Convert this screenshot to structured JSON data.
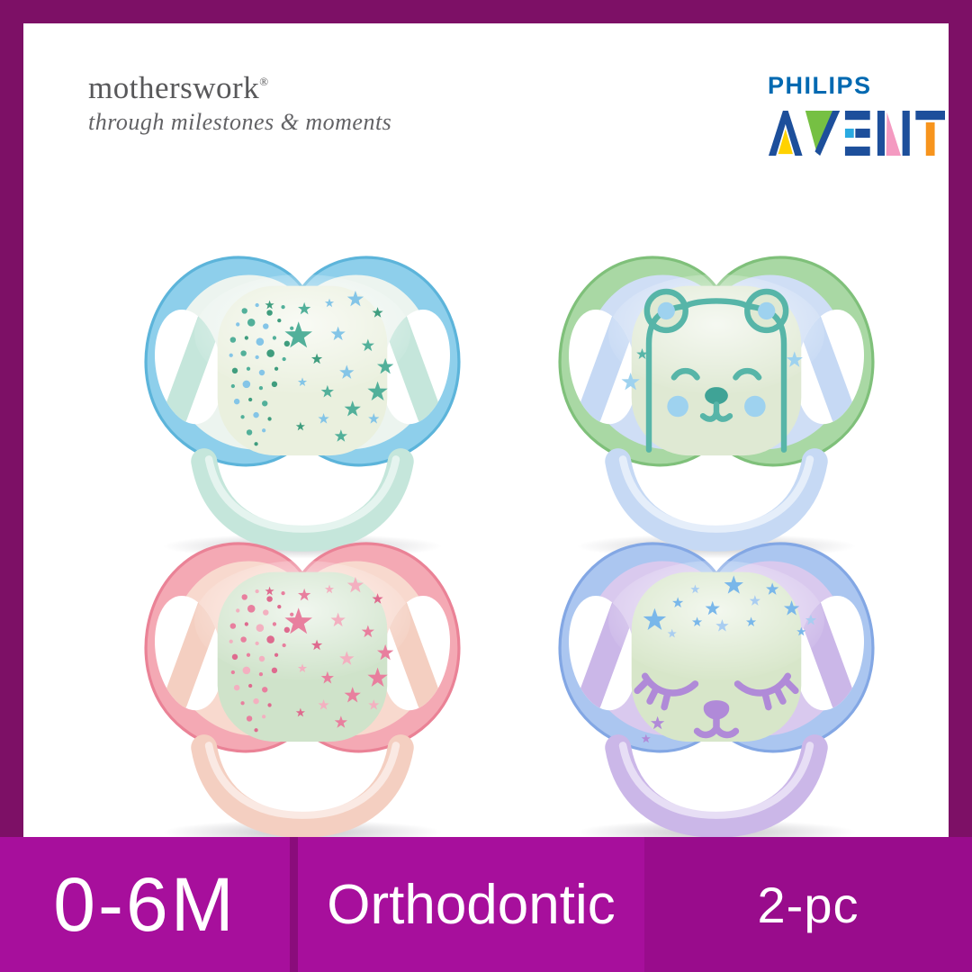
{
  "header": {
    "motherswork": {
      "wordmark": "motherswork",
      "registered": "®",
      "tagline": "through milestones & moments"
    },
    "philips": "PHILIPS",
    "avent": "AVENT"
  },
  "product": {
    "name": "Philips Avent night-time pacifiers, 2x2 grid of four glow-in-the-dark soothers",
    "pacifiers": [
      {
        "position": "top-left",
        "design": "blue shield with glow button of scattered teal and blue stars and dots, mint handle",
        "colors": {
          "rim": "#8ecfeb",
          "rim_edge": "#5cb4da",
          "inner": "#ecf4ef",
          "ring": "#c5e6db",
          "button": "#eaf0de",
          "deco_primary": "#52b09a",
          "deco_secondary": "#84c5e7",
          "deco_tertiary": "#3f9d7e"
        }
      },
      {
        "position": "top-right",
        "design": "green rim with light-blue shield, glow button with sleeping bear face and stars, blue handle",
        "colors": {
          "rim": "#a9d8a4",
          "rim_edge": "#7fc07a",
          "inner": "#cfdef5",
          "ring": "#c6d9f4",
          "button": "#dfe9d3",
          "deco_primary": "#57b5a8",
          "deco_secondary": "#9ed2ef",
          "deco_tertiary": "#3fa396"
        }
      },
      {
        "position": "bottom-left",
        "design": "pink shield with mint glow button of scattered pink stars and dots, peach handle",
        "colors": {
          "rim": "#f4a9b4",
          "rim_edge": "#ea8296",
          "inner": "#f8d9ce",
          "ring": "#f4cfc1",
          "button": "#cfe3ca",
          "deco_primary": "#e87f9e",
          "deco_secondary": "#f3b0c0",
          "deco_tertiary": "#de6a8e"
        }
      },
      {
        "position": "bottom-right",
        "design": "blue rim with lilac shield, glow button with blue stars and purple sleeping face, lilac handle",
        "colors": {
          "rim": "#abc6f0",
          "rim_edge": "#83a7e4",
          "inner": "#d9c9ee",
          "ring": "#cbb7e8",
          "button": "#d7e6c9",
          "deco_primary": "#b08ad8",
          "deco_secondary": "#79b7ea",
          "deco_tertiary": "#a9cdf1"
        }
      }
    ]
  },
  "badges": {
    "age_range": "0-6M",
    "feature": "Orthodontic",
    "pack_size": "2-pc"
  },
  "theme": {
    "frame": "#7d1066",
    "badge_bright": "#a70f9c",
    "badge_divider": "#8a0c7b",
    "badge_dark": "#990c8c",
    "philips_blue": "#0069b1",
    "avent_navy": "#1d4f9b",
    "avent_yellow": "#ffd200",
    "avent_green": "#76c043",
    "avent_lightblue": "#29aae1",
    "avent_pink": "#f49ac1",
    "avent_orange": "#f7941d",
    "logo_gray": "#58585a"
  }
}
